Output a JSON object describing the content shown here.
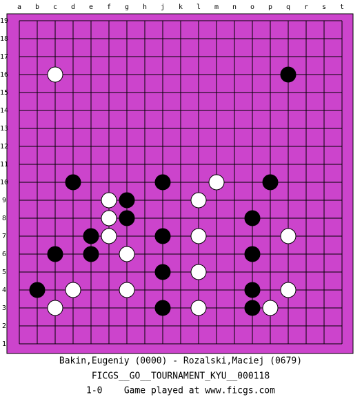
{
  "board": {
    "columns": [
      "a",
      "b",
      "c",
      "d",
      "e",
      "f",
      "g",
      "h",
      "j",
      "k",
      "l",
      "m",
      "n",
      "o",
      "p",
      "q",
      "r",
      "s",
      "t"
    ],
    "rows": [
      19,
      18,
      17,
      16,
      15,
      14,
      13,
      12,
      11,
      10,
      9,
      8,
      7,
      6,
      5,
      4,
      3,
      2,
      1
    ],
    "stones": [
      {
        "color": "white",
        "col": "c",
        "row": 16
      },
      {
        "color": "black",
        "col": "q",
        "row": 16
      },
      {
        "color": "black",
        "col": "d",
        "row": 10
      },
      {
        "color": "black",
        "col": "j",
        "row": 10
      },
      {
        "color": "white",
        "col": "m",
        "row": 10
      },
      {
        "color": "black",
        "col": "p",
        "row": 10
      },
      {
        "color": "white",
        "col": "f",
        "row": 9
      },
      {
        "color": "black",
        "col": "g",
        "row": 9
      },
      {
        "color": "white",
        "col": "l",
        "row": 9
      },
      {
        "color": "white",
        "col": "f",
        "row": 8
      },
      {
        "color": "black",
        "col": "g",
        "row": 8
      },
      {
        "color": "black",
        "col": "o",
        "row": 8
      },
      {
        "color": "black",
        "col": "e",
        "row": 7
      },
      {
        "color": "white",
        "col": "f",
        "row": 7
      },
      {
        "color": "black",
        "col": "j",
        "row": 7
      },
      {
        "color": "white",
        "col": "l",
        "row": 7
      },
      {
        "color": "white",
        "col": "q",
        "row": 7
      },
      {
        "color": "black",
        "col": "c",
        "row": 6
      },
      {
        "color": "black",
        "col": "e",
        "row": 6
      },
      {
        "color": "white",
        "col": "g",
        "row": 6
      },
      {
        "color": "black",
        "col": "o",
        "row": 6
      },
      {
        "color": "black",
        "col": "j",
        "row": 5
      },
      {
        "color": "white",
        "col": "l",
        "row": 5
      },
      {
        "color": "black",
        "col": "b",
        "row": 4
      },
      {
        "color": "white",
        "col": "d",
        "row": 4
      },
      {
        "color": "white",
        "col": "g",
        "row": 4
      },
      {
        "color": "black",
        "col": "o",
        "row": 4
      },
      {
        "color": "white",
        "col": "q",
        "row": 4
      },
      {
        "color": "white",
        "col": "c",
        "row": 3
      },
      {
        "color": "black",
        "col": "j",
        "row": 3
      },
      {
        "color": "white",
        "col": "l",
        "row": 3
      },
      {
        "color": "black",
        "col": "o",
        "row": 3
      },
      {
        "color": "white",
        "col": "p",
        "row": 3
      }
    ]
  },
  "footer": {
    "players": "Bakin,Eugeniy (0000) - Rozalski,Maciej (0679)",
    "event": "FICGS__GO__TOURNAMENT_KYU__000118",
    "result": "1-0    Game played at www.ficgs.com"
  }
}
